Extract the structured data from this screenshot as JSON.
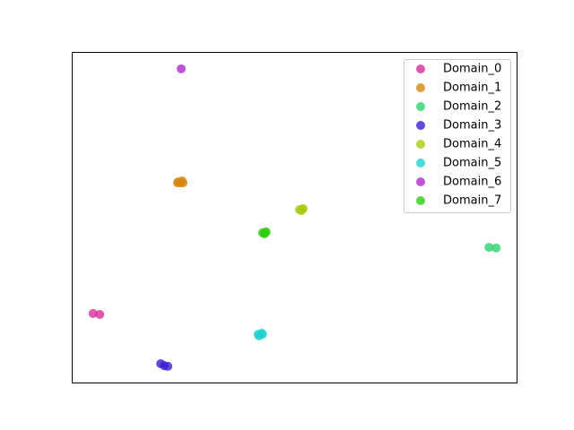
{
  "chart_data": {
    "type": "scatter",
    "legend": "upper right",
    "xlim": [
      0,
      100
    ],
    "ylim": [
      0,
      100
    ],
    "series": [
      {
        "name": "Domain_0",
        "color": "#d62f9a",
        "x": [
          4.8,
          6.3
        ],
        "values": [
          20.9,
          20.6
        ]
      },
      {
        "name": "Domain_1",
        "color": "#d6850f",
        "x": [
          23.9,
          24.8,
          24.4,
          23.8,
          25.0
        ],
        "values": [
          60.7,
          61.0,
          60.4,
          60.4,
          60.4
        ]
      },
      {
        "name": "Domain_2",
        "color": "#2ed36e",
        "x": [
          93.8,
          95.4
        ],
        "values": [
          40.9,
          40.7
        ]
      },
      {
        "name": "Domain_3",
        "color": "#3a1fd1",
        "x": [
          20.0,
          20.8,
          21.6
        ],
        "values": [
          5.7,
          5.1,
          4.9
        ]
      },
      {
        "name": "Domain_4",
        "color": "#a8cc12",
        "x": [
          51.2,
          52.0,
          51.6,
          51.8
        ],
        "values": [
          52.3,
          52.6,
          52.0,
          52.3
        ]
      },
      {
        "name": "Domain_5",
        "color": "#1fcfcf",
        "x": [
          41.9,
          42.7,
          42.1,
          42.9
        ],
        "values": [
          14.6,
          14.9,
          14.1,
          14.6
        ]
      },
      {
        "name": "Domain_6",
        "color": "#ad2ad1",
        "x": [
          24.6
        ],
        "values": [
          94.9
        ]
      },
      {
        "name": "Domain_7",
        "color": "#2fcc14",
        "x": [
          42.9,
          43.7,
          43.3,
          43.5
        ],
        "values": [
          45.3,
          45.6,
          45.0,
          45.3
        ]
      }
    ]
  }
}
